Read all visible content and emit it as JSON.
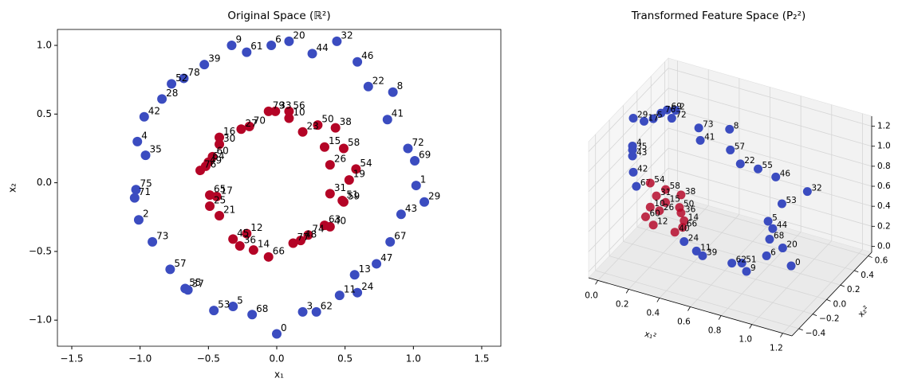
{
  "chart_data": [
    {
      "type": "scatter",
      "title": "Original Space (ℝ²)",
      "x_label": "x₁",
      "y_label": "x₂",
      "xlim": [
        -1.605,
        1.64
      ],
      "ylim": [
        -1.19,
        1.116
      ],
      "xticks": [
        {
          "value": -1.5,
          "label": "−1.5"
        },
        {
          "value": -1.0,
          "label": "−1.0"
        },
        {
          "value": -0.5,
          "label": "−0.5"
        },
        {
          "value": 0,
          "label": "0.0"
        },
        {
          "value": 0.5,
          "label": "0.5"
        },
        {
          "value": 1.0,
          "label": "1.0"
        },
        {
          "value": 1.5,
          "label": "1.5"
        }
      ],
      "yticks": [
        {
          "value": -1.0,
          "label": "−1.0"
        },
        {
          "value": -0.5,
          "label": "−0.5"
        },
        {
          "value": 0,
          "label": "0.0"
        },
        {
          "value": 0.5,
          "label": "0.5"
        },
        {
          "value": 1.0,
          "label": "1.0"
        }
      ],
      "series": [
        {
          "color": "#3b4cc0",
          "labels": [
            9,
            61,
            6,
            20,
            32,
            44,
            46,
            39,
            52,
            78,
            28,
            42,
            22,
            8,
            41,
            4,
            35,
            72,
            69,
            1,
            29,
            75,
            71,
            2,
            43,
            73,
            67,
            47,
            57,
            13,
            55,
            37,
            11,
            24,
            53,
            5,
            68,
            3,
            62,
            0
          ],
          "x": [
            -0.33,
            -0.22,
            -0.04,
            0.09,
            0.44,
            0.26,
            0.59,
            -0.53,
            -0.77,
            -0.68,
            -0.84,
            -0.97,
            0.67,
            0.85,
            0.81,
            -1.02,
            -0.96,
            0.96,
            1.01,
            1.02,
            1.08,
            -1.03,
            -1.04,
            -1.01,
            0.91,
            -0.91,
            0.83,
            0.73,
            -0.78,
            0.57,
            -0.67,
            -0.65,
            0.46,
            0.59,
            -0.46,
            -0.32,
            -0.18,
            0.19,
            0.29,
            0.0
          ],
          "y": [
            1.0,
            0.95,
            1.0,
            1.03,
            1.03,
            0.94,
            0.88,
            0.86,
            0.72,
            0.76,
            0.61,
            0.48,
            0.7,
            0.66,
            0.46,
            0.3,
            0.2,
            0.25,
            0.16,
            -0.02,
            -0.14,
            -0.05,
            -0.11,
            -0.27,
            -0.23,
            -0.43,
            -0.43,
            -0.59,
            -0.63,
            -0.67,
            -0.77,
            -0.78,
            -0.82,
            -0.8,
            -0.93,
            -0.9,
            -0.96,
            -0.94,
            -0.94,
            -1.1
          ]
        },
        {
          "color": "#b40426",
          "labels": [
            79,
            33,
            56,
            10,
            50,
            38,
            23,
            27,
            70,
            16,
            30,
            15,
            58,
            60,
            64,
            49,
            26,
            54,
            76,
            19,
            31,
            65,
            17,
            25,
            51,
            59,
            21,
            63,
            40,
            12,
            45,
            74,
            48,
            77,
            36,
            14,
            66
          ],
          "x": [
            -0.06,
            -0.01,
            0.09,
            0.09,
            0.3,
            0.43,
            0.19,
            -0.26,
            -0.2,
            -0.42,
            -0.42,
            0.35,
            0.49,
            -0.47,
            -0.5,
            -0.52,
            0.39,
            0.58,
            -0.56,
            0.53,
            0.39,
            -0.49,
            -0.44,
            -0.49,
            0.48,
            0.49,
            -0.42,
            0.35,
            0.39,
            -0.22,
            -0.32,
            0.23,
            0.175,
            0.12,
            -0.27,
            -0.17,
            -0.06
          ],
          "y": [
            0.52,
            0.52,
            0.52,
            0.47,
            0.42,
            0.4,
            0.37,
            0.39,
            0.41,
            0.33,
            0.28,
            0.26,
            0.25,
            0.19,
            0.15,
            0.12,
            0.13,
            0.1,
            0.09,
            0.02,
            -0.08,
            -0.09,
            -0.1,
            -0.17,
            -0.13,
            -0.14,
            -0.24,
            -0.31,
            -0.32,
            -0.37,
            -0.41,
            -0.38,
            -0.42,
            -0.44,
            -0.46,
            -0.49,
            -0.54
          ]
        }
      ]
    },
    {
      "type": "scatter3d",
      "title": "Transformed Feature Space (P₂²)",
      "x_label": "x₁²",
      "y_label": "x₂²",
      "xlim": [
        -0.06,
        1.26
      ],
      "ylim": [
        -0.5,
        0.65
      ],
      "zlim": [
        -0.06,
        1.3
      ],
      "xticks": [
        {
          "value": 0,
          "label": "0.0"
        },
        {
          "value": 0.2,
          "label": "0.2"
        },
        {
          "value": 0.4,
          "label": "0.4"
        },
        {
          "value": 0.6,
          "label": "0.6"
        },
        {
          "value": 0.8,
          "label": "0.8"
        },
        {
          "value": 1.0,
          "label": "1.0"
        },
        {
          "value": 1.2,
          "label": "1.2"
        }
      ],
      "yticks": [
        {
          "value": -0.4,
          "label": "−0.4"
        },
        {
          "value": -0.2,
          "label": "−0.2"
        },
        {
          "value": 0,
          "label": "0.0"
        },
        {
          "value": 0.2,
          "label": "0.2"
        },
        {
          "value": 0.4,
          "label": "0.4"
        },
        {
          "value": 0.6,
          "label": "0.6"
        }
      ],
      "zticks": [
        {
          "value": 0,
          "label": "0.0"
        },
        {
          "value": 0.2,
          "label": "0.2"
        },
        {
          "value": 0.4,
          "label": "0.4"
        },
        {
          "value": 0.6,
          "label": "0.6"
        },
        {
          "value": 0.8,
          "label": "0.8"
        },
        {
          "value": 1.0,
          "label": "1.0"
        },
        {
          "value": 1.2,
          "label": "1.2"
        }
      ],
      "series": [
        {
          "color": "#3b4cc0",
          "labels": [
            29,
            17,
            5,
            76,
            69,
            2,
            72,
            73,
            41,
            8,
            57,
            22,
            55,
            46,
            53,
            32,
            4,
            35,
            43,
            42,
            67,
            5,
            44,
            68,
            20,
            6,
            0,
            24,
            11,
            39,
            62,
            51,
            9
          ],
          "x": [
            0.005,
            0.075,
            0.09,
            0.005,
            0.045,
            0.1,
            0.075,
            0.25,
            0.26,
            0.36,
            0.455,
            0.52,
            0.635,
            0.75,
            0.79,
            0.865,
            0,
            0,
            0,
            0.005,
            0.07,
            0.79,
            0.82,
            0.89,
            0.975,
            0.96,
            1.12,
            0.47,
            0.55,
            0.59,
            0.78,
            0.845,
            0.875
          ],
          "y": [
            0,
            0,
            0.1,
            0.4,
            0.4,
            0.4,
            0.4,
            0.4,
            0.4,
            0.6,
            0.4,
            0.4,
            0.4,
            0.4,
            0.4,
            0.6,
            0,
            0,
            0,
            0,
            -0.1,
            0.2,
            0.2,
            0,
            0,
            -0.2,
            -0.2,
            -0.3,
            -0.3,
            -0.3,
            -0.3,
            -0.3,
            -0.3
          ],
          "z": [
            1.2,
            1.2,
            1.16,
            0.96,
            1.01,
            1.03,
            0.94,
            0.92,
            0.8,
            0.81,
            0.79,
            0.68,
            0.68,
            0.65,
            0.4,
            0.41,
            0.92,
            0.88,
            0.82,
            0.66,
            0.62,
            0.37,
            0.31,
            0.38,
            0.33,
            0.39,
            0.36,
            0.39,
            0.33,
            0.3,
            0.31,
            0.34,
            0.27
          ]
        },
        {
          "color": "#b40426",
          "labels": [
            54,
            58,
            38,
            31,
            15,
            50,
            36,
            26,
            10,
            14,
            66,
            40,
            12,
            60
          ],
          "x": [
            0.115,
            0.215,
            0.315,
            0.155,
            0.215,
            0.305,
            0.315,
            0.175,
            0.115,
            0.335,
            0.325,
            0.275,
            0.135,
            0.085
          ],
          "y": [
            0,
            0,
            0,
            0,
            0,
            0,
            0,
            0,
            0,
            0,
            0,
            0,
            0,
            0
          ],
          "z": [
            0.6,
            0.58,
            0.57,
            0.49,
            0.45,
            0.44,
            0.39,
            0.35,
            0.36,
            0.32,
            0.25,
            0.18,
            0.19,
            0.25
          ]
        }
      ]
    }
  ]
}
